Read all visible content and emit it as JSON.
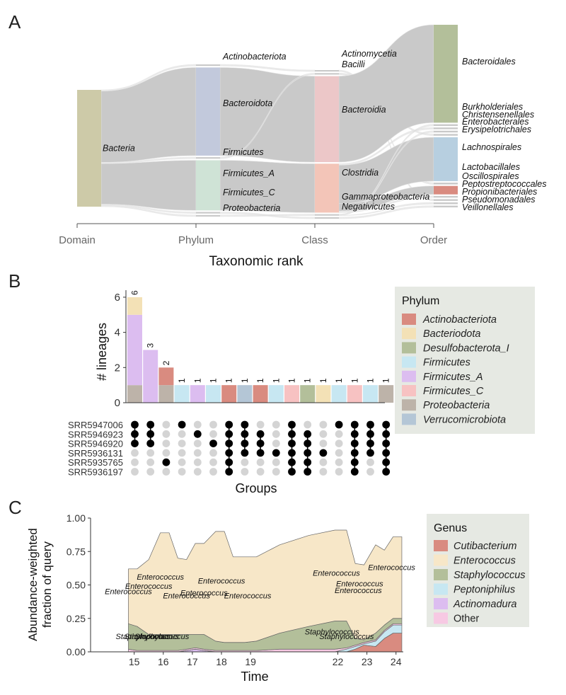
{
  "panel_labels": [
    "A",
    "B",
    "C"
  ],
  "colors": {
    "flow": "#c9c9c9",
    "sankey_bar": "#cccaa8",
    "legend_bg": "#e6e9e3",
    "matrix_on": "#000000",
    "matrix_off": "#d4d4d4"
  },
  "chart_data": [
    {
      "id": "A",
      "type": "sankey",
      "xlabel": "Taxonomic rank",
      "columns": [
        "Domain",
        "Phylum",
        "Class",
        "Order"
      ],
      "nodes": {
        "Domain": [
          {
            "name": "Bacteria",
            "value": 100,
            "color": "#cdcaa8"
          }
        ],
        "Phylum": [
          {
            "name": "Actinobacteriota",
            "value": 1,
            "color": "#c9c9c9"
          },
          {
            "name": "Bacteroidota",
            "value": 58,
            "color": "#c2c9dc"
          },
          {
            "name": "Firmicutes",
            "value": 1,
            "color": "#c9c9c9"
          },
          {
            "name": "Firmicutes_A",
            "value": 33,
            "color": "#cfe3d6"
          },
          {
            "name": "Firmicutes_C",
            "value": 1,
            "color": "#c9c9c9"
          },
          {
            "name": "Proteobacteria",
            "value": 1,
            "color": "#c9c9c9"
          }
        ],
        "Class": [
          {
            "name": "Actinomycetia",
            "value": 1,
            "color": "#c9c9c9"
          },
          {
            "name": "Bacilli",
            "value": 1,
            "color": "#c9c9c9"
          },
          {
            "name": "Bacteroidia",
            "value": 58,
            "color": "#ecc7c8"
          },
          {
            "name": "Clostridia",
            "value": 33,
            "color": "#f3c5b8"
          },
          {
            "name": "Gammaproteobacteria",
            "value": 1,
            "color": "#c9c9c9"
          },
          {
            "name": "Negativicutes",
            "value": 1,
            "color": "#c9c9c9"
          }
        ],
        "Order": [
          {
            "name": "Bacteroidales",
            "value": 58,
            "color": "#b3bf9a"
          },
          {
            "name": "Burkholderiales",
            "value": 1,
            "color": "#c9c9c9"
          },
          {
            "name": "Christensenellales",
            "value": 1,
            "color": "#c9c9c9"
          },
          {
            "name": "Enterobacterales",
            "value": 1,
            "color": "#c9c9c9"
          },
          {
            "name": "Erysipelotrichales",
            "value": 1,
            "color": "#c9c9c9"
          },
          {
            "name": "Lachnospirales",
            "value": 26,
            "color": "#b7cfe0"
          },
          {
            "name": "Lactobacillales",
            "value": 1,
            "color": "#c9c9c9"
          },
          {
            "name": "Oscillospirales",
            "value": 5,
            "color": "#d98b80"
          },
          {
            "name": "Peptostreptococcales",
            "value": 1,
            "color": "#c9c9c9"
          },
          {
            "name": "Propionibacteriales",
            "value": 1,
            "color": "#c9c9c9"
          },
          {
            "name": "Pseudomonadales",
            "value": 1,
            "color": "#c9c9c9"
          },
          {
            "name": "Veillonellales",
            "value": 1,
            "color": "#c9c9c9"
          }
        ]
      },
      "links": [
        [
          "Bacteria",
          "Actinobacteriota"
        ],
        [
          "Bacteria",
          "Bacteroidota"
        ],
        [
          "Bacteria",
          "Firmicutes"
        ],
        [
          "Bacteria",
          "Firmicutes_A"
        ],
        [
          "Bacteria",
          "Firmicutes_C"
        ],
        [
          "Bacteria",
          "Proteobacteria"
        ],
        [
          "Actinobacteriota",
          "Actinomycetia"
        ],
        [
          "Bacteroidota",
          "Bacteroidia"
        ],
        [
          "Firmicutes",
          "Bacilli"
        ],
        [
          "Firmicutes_A",
          "Clostridia"
        ],
        [
          "Firmicutes_C",
          "Negativicutes"
        ],
        [
          "Proteobacteria",
          "Gammaproteobacteria"
        ],
        [
          "Actinomycetia",
          "Propionibacteriales"
        ],
        [
          "Bacilli",
          "Erysipelotrichales"
        ],
        [
          "Bacilli",
          "Lactobacillales"
        ],
        [
          "Bacteroidia",
          "Bacteroidales"
        ],
        [
          "Clostridia",
          "Christensenellales"
        ],
        [
          "Clostridia",
          "Lachnospirales"
        ],
        [
          "Clostridia",
          "Oscillospirales"
        ],
        [
          "Clostridia",
          "Peptostreptococcales"
        ],
        [
          "Gammaproteobacteria",
          "Burkholderiales"
        ],
        [
          "Gammaproteobacteria",
          "Enterobacterales"
        ],
        [
          "Gammaproteobacteria",
          "Pseudomonadales"
        ],
        [
          "Negativicutes",
          "Veillonellales"
        ]
      ]
    },
    {
      "id": "B",
      "type": "upset",
      "ylabel": "# lineages",
      "xlabel": "Groups",
      "ylim": [
        0,
        6.4
      ],
      "yticks": [
        0,
        2,
        4,
        6
      ],
      "sets": [
        "SRR5947006",
        "SRR5946923",
        "SRR5946920",
        "SRR5936131",
        "SRR5935765",
        "SRR5936197"
      ],
      "legend_title": "Phylum",
      "phyla": [
        {
          "name": "Actinobacteriota",
          "color": "#d98b80"
        },
        {
          "name": "Bacteriodota",
          "color": "#f3e1b6"
        },
        {
          "name": "Desulfobacterota_I",
          "color": "#b3bf9a"
        },
        {
          "name": "Firmicutes",
          "color": "#c7e7f2"
        },
        {
          "name": "Firmicutes_A",
          "color": "#dcbdf0"
        },
        {
          "name": "Firmicutes_C",
          "color": "#f7c2c2"
        },
        {
          "name": "Proteobacteria",
          "color": "#bdb3a9"
        },
        {
          "name": "Verrucomicrobiota",
          "color": "#b4c6d6"
        }
      ],
      "bars": [
        {
          "total": 6,
          "label": "6",
          "segments": [
            [
              "Proteobacteria",
              1
            ],
            [
              "Firmicutes_A",
              4
            ],
            [
              "Bacteriodota",
              1
            ]
          ],
          "members": [
            0,
            1,
            2
          ]
        },
        {
          "total": 3,
          "label": "3",
          "segments": [
            [
              "Firmicutes_A",
              3
            ]
          ],
          "members": [
            0,
            1,
            2
          ]
        },
        {
          "total": 2,
          "label": "2",
          "segments": [
            [
              "Proteobacteria",
              1
            ],
            [
              "Actinobacteriota",
              1
            ]
          ],
          "members": [
            4
          ]
        },
        {
          "total": 1,
          "label": "1",
          "segments": [
            [
              "Firmicutes",
              1
            ]
          ],
          "members": [
            0
          ]
        },
        {
          "total": 1,
          "label": "1",
          "segments": [
            [
              "Firmicutes_A",
              1
            ]
          ],
          "members": [
            1
          ]
        },
        {
          "total": 1,
          "label": "1",
          "segments": [
            [
              "Firmicutes",
              1
            ]
          ],
          "members": [
            2
          ]
        },
        {
          "total": 1,
          "label": "1",
          "segments": [
            [
              "Actinobacteriota",
              1
            ]
          ],
          "members": [
            0,
            1,
            2,
            3,
            4,
            5
          ]
        },
        {
          "total": 1,
          "label": "1",
          "segments": [
            [
              "Verrucomicrobiota",
              1
            ]
          ],
          "members": [
            0,
            1,
            2,
            3
          ]
        },
        {
          "total": 1,
          "label": "1",
          "segments": [
            [
              "Actinobacteriota",
              1
            ]
          ],
          "members": [
            1,
            2,
            3
          ]
        },
        {
          "total": 1,
          "label": "1",
          "segments": [
            [
              "Firmicutes",
              1
            ]
          ],
          "members": [
            3
          ]
        },
        {
          "total": 1,
          "label": "1",
          "segments": [
            [
              "Firmicutes_C",
              1
            ]
          ],
          "members": [
            0,
            1,
            2,
            3,
            4,
            5
          ]
        },
        {
          "total": 1,
          "label": "1",
          "segments": [
            [
              "Desulfobacterota_I",
              1
            ]
          ],
          "members": [
            1,
            2,
            3,
            4,
            5
          ]
        },
        {
          "total": 1,
          "label": "1",
          "segments": [
            [
              "Bacteriodota",
              1
            ]
          ],
          "members": [
            3
          ]
        },
        {
          "total": 1,
          "label": "1",
          "segments": [
            [
              "Firmicutes",
              1
            ]
          ],
          "members": [
            0
          ]
        },
        {
          "total": 1,
          "label": "1",
          "segments": [
            [
              "Firmicutes_C",
              1
            ]
          ],
          "members": [
            0,
            1,
            2,
            3,
            4,
            5
          ]
        },
        {
          "total": 1,
          "label": "1",
          "segments": [
            [
              "Firmicutes",
              1
            ]
          ],
          "members": [
            0,
            1,
            2,
            3
          ]
        },
        {
          "total": 1,
          "label": "1",
          "segments": [
            [
              "Proteobacteria",
              1
            ]
          ],
          "members": [
            0,
            1,
            2,
            3,
            4,
            5
          ]
        }
      ]
    },
    {
      "id": "C",
      "type": "area",
      "ylabel": "Abundance-weighted fraction of query",
      "ylabel_lines": [
        "Abundance-weighted",
        "fraction of query"
      ],
      "xlabel": "Time",
      "xlim": [
        13.5,
        24.25
      ],
      "ylim": [
        0,
        1
      ],
      "xticks": [
        15,
        16,
        17,
        18,
        19,
        22,
        23,
        24
      ],
      "ytick_labels": [
        "0.00",
        "0.25",
        "0.50",
        "0.75",
        "1.00"
      ],
      "legend_title": "Genus",
      "genera": [
        {
          "name": "Cutibacterium",
          "color": "#d98b80"
        },
        {
          "name": "Enterococcus",
          "color": "#f7e7c8"
        },
        {
          "name": "Staphylococcus",
          "color": "#b3bf9a"
        },
        {
          "name": "Peptoniphilus",
          "color": "#c7e7f2"
        },
        {
          "name": "Actinomadura",
          "color": "#dcbdf0"
        },
        {
          "name": "Other",
          "color": "#f7c9e3"
        }
      ],
      "x": [
        14.8,
        15.1,
        15.5,
        15.9,
        16.2,
        16.5,
        16.8,
        17.1,
        17.4,
        17.8,
        18.1,
        18.4,
        18.8,
        19.2,
        20.0,
        21.0,
        21.9,
        22.3,
        22.6,
        22.9,
        23.3,
        23.6,
        23.9,
        24.2
      ],
      "series": [
        {
          "name": "Cutibacterium",
          "values": [
            0.0,
            0.0,
            0.0,
            0.0,
            0.0,
            0.0,
            0.0,
            0.0,
            0.0,
            0.0,
            0.0,
            0.0,
            0.0,
            0.0,
            0.0,
            0.0,
            0.0,
            0.0,
            0.02,
            0.05,
            0.04,
            0.1,
            0.14,
            0.14
          ]
        },
        {
          "name": "Actinomadura",
          "values": [
            0.0,
            0.0,
            0.0,
            0.0,
            0.0,
            0.0,
            0.01,
            0.02,
            0.01,
            0.0,
            0.0,
            0.0,
            0.0,
            0.0,
            0.0,
            0.0,
            0.0,
            0.0,
            0.0,
            0.0,
            0.0,
            0.0,
            0.0,
            0.0
          ]
        },
        {
          "name": "Peptoniphilus",
          "values": [
            0.0,
            0.0,
            0.0,
            0.0,
            0.0,
            0.0,
            0.0,
            0.0,
            0.0,
            0.0,
            0.0,
            0.0,
            0.0,
            0.0,
            0.0,
            0.0,
            0.0,
            0.02,
            0.02,
            0.01,
            0.04,
            0.05,
            0.06,
            0.06
          ]
        },
        {
          "name": "Other",
          "values": [
            0.02,
            0.01,
            0.01,
            0.01,
            0.01,
            0.01,
            0.01,
            0.01,
            0.01,
            0.01,
            0.01,
            0.01,
            0.01,
            0.01,
            0.02,
            0.02,
            0.02,
            0.01,
            0.01,
            0.01,
            0.01,
            0.01,
            0.01,
            0.01
          ]
        },
        {
          "name": "Staphylococcus",
          "values": [
            0.19,
            0.18,
            0.12,
            0.12,
            0.12,
            0.12,
            0.11,
            0.1,
            0.11,
            0.07,
            0.06,
            0.06,
            0.06,
            0.07,
            0.12,
            0.17,
            0.21,
            0.2,
            0.05,
            0.02,
            0.05,
            0.04,
            0.04,
            0.04
          ]
        },
        {
          "name": "Enterococcus",
          "values": [
            0.41,
            0.43,
            0.56,
            0.76,
            0.76,
            0.57,
            0.56,
            0.68,
            0.68,
            0.82,
            0.83,
            0.64,
            0.64,
            0.63,
            0.66,
            0.68,
            0.68,
            0.68,
            0.56,
            0.56,
            0.66,
            0.56,
            0.61,
            0.61
          ]
        }
      ],
      "annotations": [
        {
          "text": "Enterococcus",
          "x": 15.9,
          "y": 0.54
        },
        {
          "text": "Enterococcus",
          "x": 15.5,
          "y": 0.47
        },
        {
          "text": "Enterococcus",
          "x": 14.8,
          "y": 0.43
        },
        {
          "text": "Enterococcus",
          "x": 16.8,
          "y": 0.4
        },
        {
          "text": "Enterococcus",
          "x": 17.4,
          "y": 0.42
        },
        {
          "text": "Enterococcus",
          "x": 18.0,
          "y": 0.51
        },
        {
          "text": "Enterococcus",
          "x": 18.9,
          "y": 0.4
        },
        {
          "text": "Enterococcus",
          "x": 21.95,
          "y": 0.57
        },
        {
          "text": "Enterococcus",
          "x": 22.75,
          "y": 0.49
        },
        {
          "text": "Enterococcus",
          "x": 22.7,
          "y": 0.44
        },
        {
          "text": "Enterococcus",
          "x": 23.85,
          "y": 0.61
        },
        {
          "text": "Staphylococcus",
          "x": 15.3,
          "y": 0.095
        },
        {
          "text": "Staphylococcus",
          "x": 15.6,
          "y": 0.095
        },
        {
          "text": "Staphylococcus",
          "x": 15.95,
          "y": 0.095
        },
        {
          "text": "Staphylococcus",
          "x": 21.8,
          "y": 0.13
        },
        {
          "text": "Staphylococcus",
          "x": 22.3,
          "y": 0.095
        }
      ]
    }
  ]
}
